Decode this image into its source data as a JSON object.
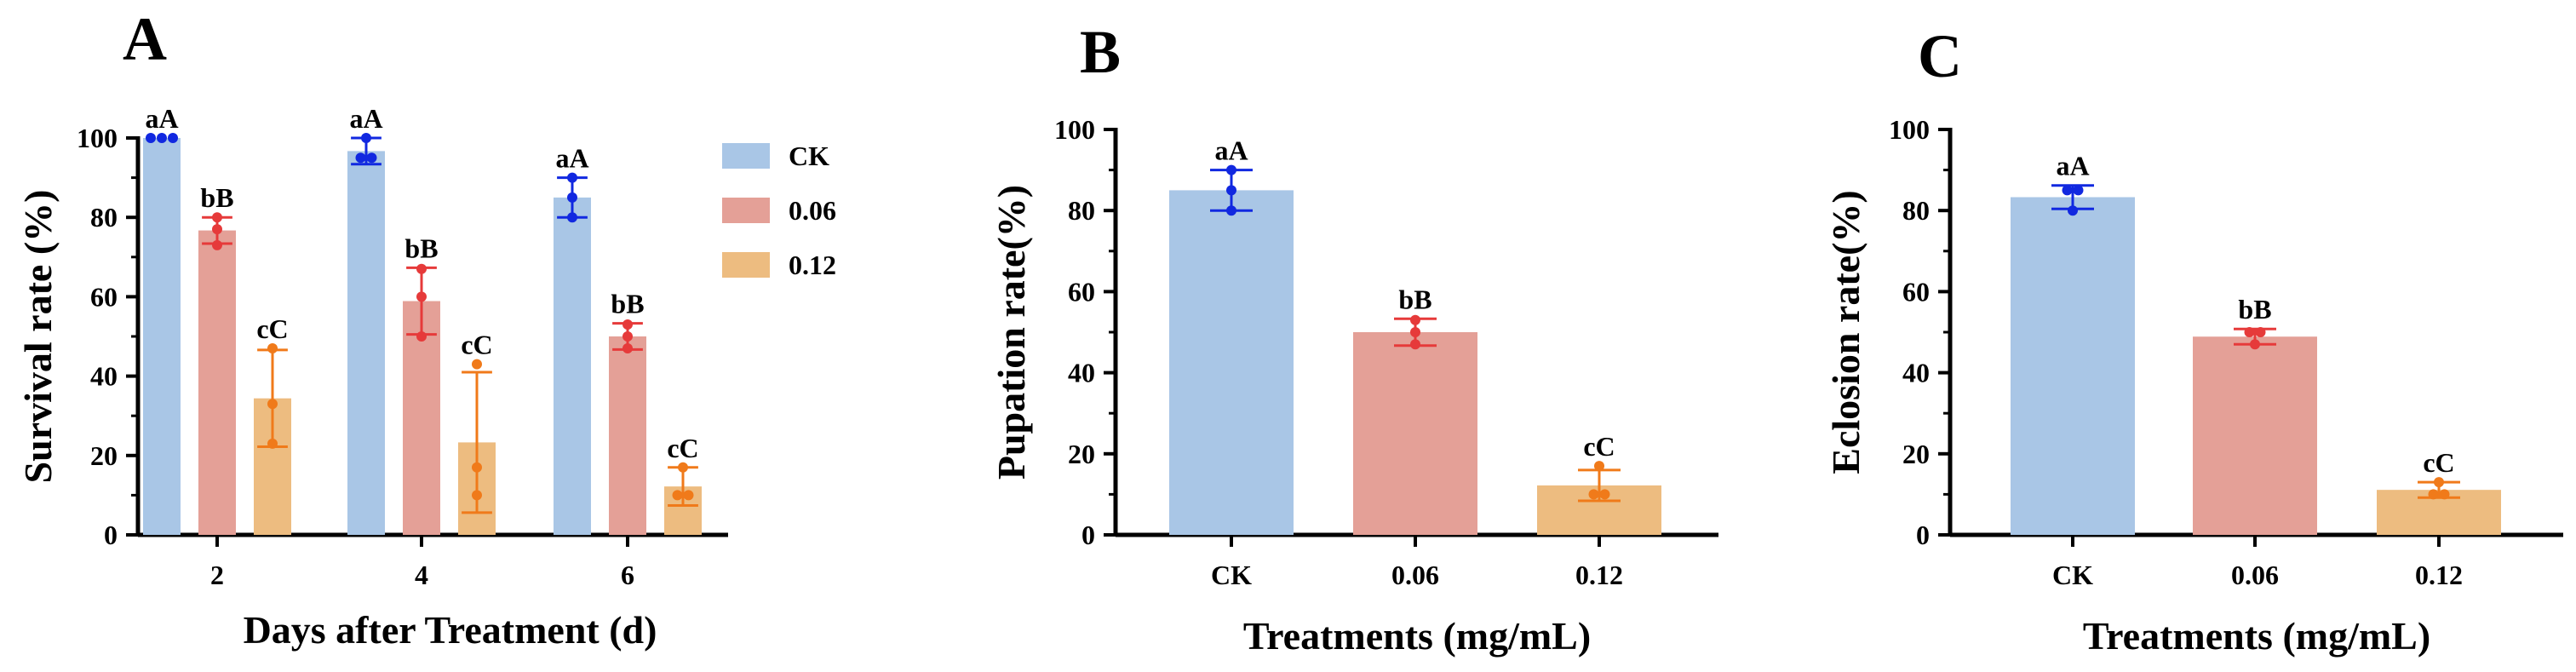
{
  "colors": {
    "series": [
      "#A9C6E6",
      "#E4A097",
      "#EDBC80"
    ],
    "points": [
      "#1128E0",
      "#E63A3A",
      "#F07A1A"
    ]
  },
  "chart_data": [
    {
      "panel": "A",
      "type": "bar",
      "title": "",
      "xlabel": "Days after Treatment (d)",
      "ylabel": "Survival rate (%)",
      "ylim": [
        0,
        100
      ],
      "yticks": [
        "0",
        "20",
        "40",
        "60",
        "80",
        "100"
      ],
      "categories": [
        "2",
        "4",
        "6"
      ],
      "legend": {
        "position": "top-right"
      },
      "series": [
        {
          "name": "CK",
          "values": [
            100,
            96.7,
            85
          ],
          "err": [
            0,
            3.3,
            5
          ],
          "points": [
            [
              100,
              100,
              100
            ],
            [
              95,
              95,
              100
            ],
            [
              80,
              85,
              90
            ]
          ],
          "labels": [
            "aA",
            "aA",
            "aA"
          ]
        },
        {
          "name": "0.06",
          "values": [
            76.7,
            58.9,
            50
          ],
          "err": [
            3.3,
            8.4,
            3.3
          ],
          "points": [
            [
              73,
              77,
              80
            ],
            [
              50,
              60,
              67
            ],
            [
              47,
              50,
              53
            ]
          ],
          "labels": [
            "bB",
            "bB",
            "bB"
          ]
        },
        {
          "name": "0.12",
          "values": [
            34.4,
            23.3,
            12.2
          ],
          "err": [
            12.2,
            17.7,
            4.8
          ],
          "points": [
            [
              23,
              33,
              47
            ],
            [
              10,
              17,
              43
            ],
            [
              10,
              10,
              17
            ]
          ],
          "labels": [
            "cC",
            "cC",
            "cC"
          ]
        }
      ]
    },
    {
      "panel": "B",
      "type": "bar",
      "title": "",
      "xlabel": "Treatments (mg/mL)",
      "ylabel": "Pupation rate(%)",
      "ylim": [
        0,
        100
      ],
      "yticks": [
        "0",
        "20",
        "40",
        "60",
        "80",
        "100"
      ],
      "categories": [
        "CK",
        "0.06",
        "0.12"
      ],
      "values": [
        85,
        50,
        12.2
      ],
      "err": [
        5,
        3.3,
        3.8
      ],
      "points": [
        [
          80,
          85,
          90
        ],
        [
          47,
          50,
          53
        ],
        [
          10,
          10,
          17
        ]
      ],
      "labels": [
        "aA",
        "bB",
        "cC"
      ]
    },
    {
      "panel": "C",
      "type": "bar",
      "title": "",
      "xlabel": "Treatments (mg/mL)",
      "ylabel": "Eclosion rate(%)",
      "ylim": [
        0,
        100
      ],
      "yticks": [
        "0",
        "20",
        "40",
        "60",
        "80",
        "100"
      ],
      "categories": [
        "CK",
        "0.06",
        "0.12"
      ],
      "values": [
        83.3,
        48.9,
        11.1
      ],
      "err": [
        2.9,
        1.9,
        1.9
      ],
      "points": [
        [
          80,
          85,
          85
        ],
        [
          47,
          50,
          50
        ],
        [
          10,
          10,
          13
        ]
      ],
      "labels": [
        "aA",
        "bB",
        "cC"
      ]
    }
  ]
}
